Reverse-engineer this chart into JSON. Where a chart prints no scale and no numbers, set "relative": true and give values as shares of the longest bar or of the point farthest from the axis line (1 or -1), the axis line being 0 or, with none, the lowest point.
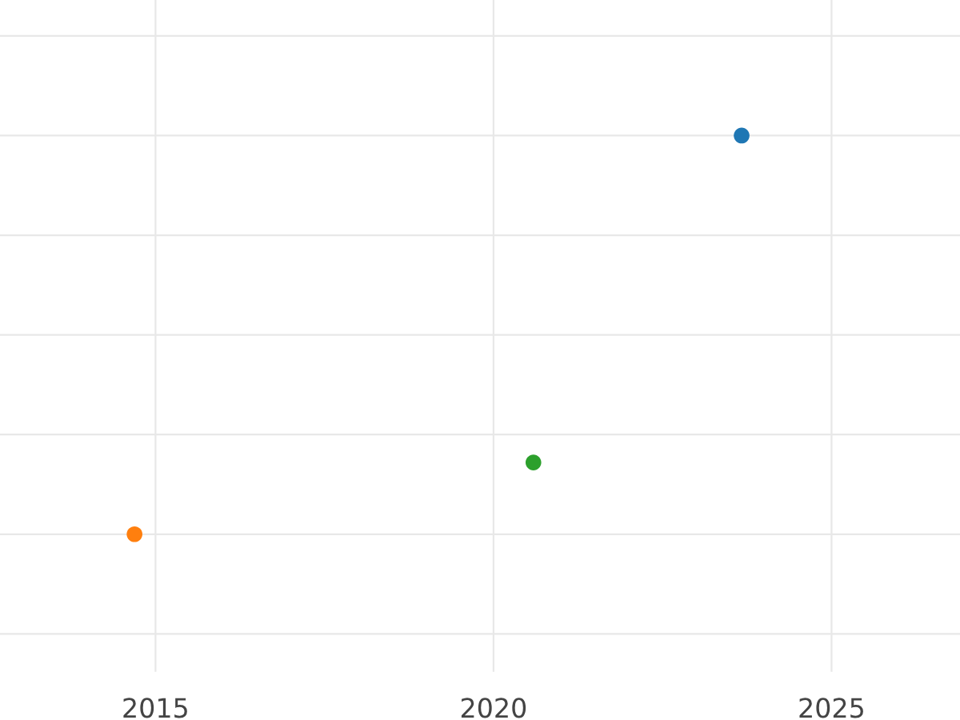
{
  "chart_data": {
    "type": "scatter",
    "relative": true,
    "x": [
      2023.67,
      2014.69,
      2020.59
    ],
    "values": [
      1,
      0,
      0.18
    ],
    "colors": [
      "#1f77b4",
      "#ff7f0e",
      "#2ca02c"
    ],
    "xlim": [
      2012.7,
      2026.9
    ],
    "xticks": [
      2015,
      2020,
      2025
    ],
    "grid": true,
    "marker": "circle"
  }
}
